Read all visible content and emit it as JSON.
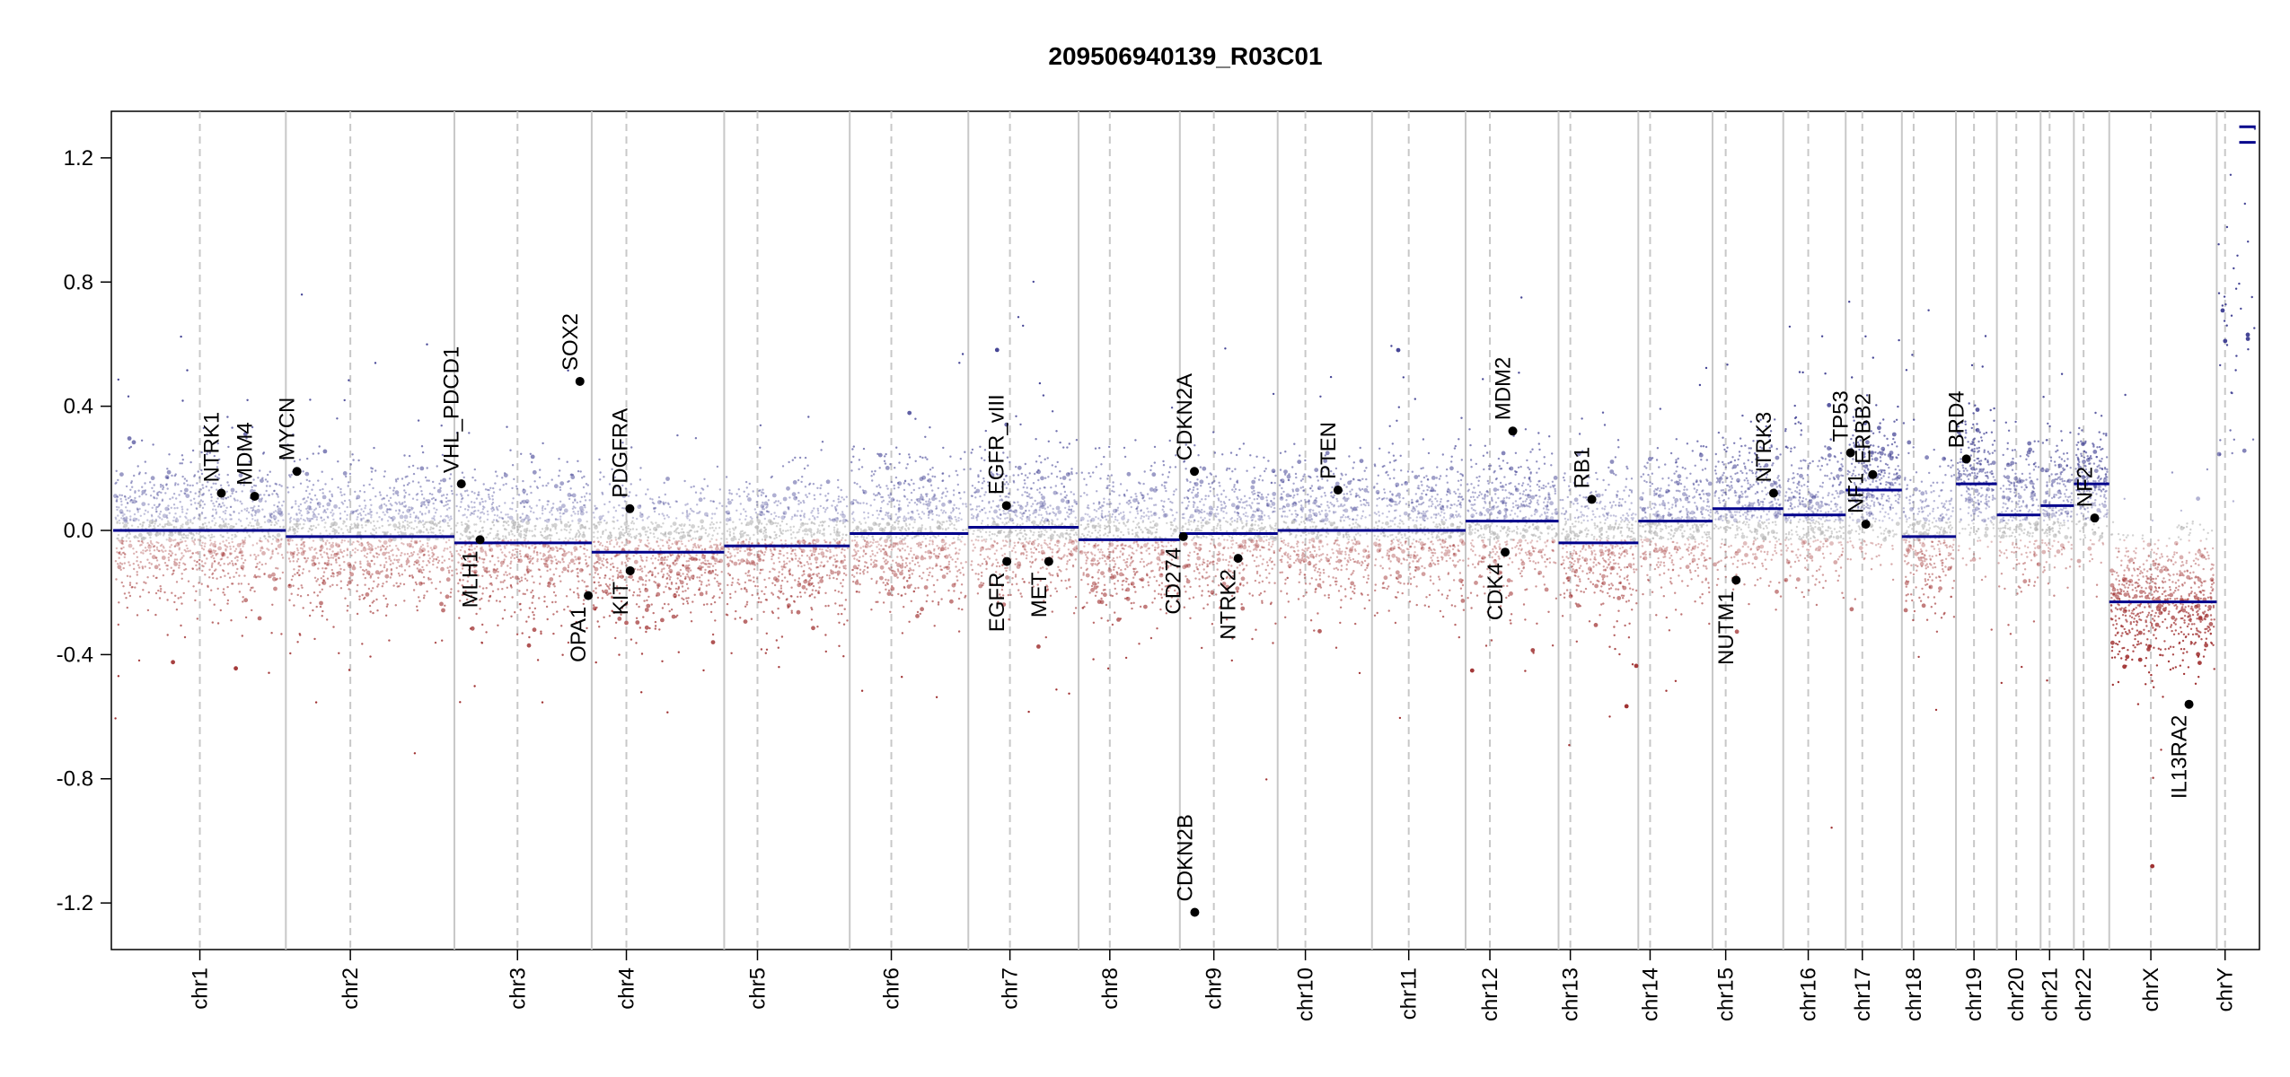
{
  "chart_data": {
    "type": "scatter",
    "title": "209506940139_R03C01",
    "xlabel": "",
    "ylabel": "",
    "ylim": [
      -1.35,
      1.35
    ],
    "y_ticks": [
      -1.2,
      -0.8,
      -0.4,
      0.0,
      0.4,
      0.8,
      1.2
    ],
    "y_tick_labels": [
      "-1.2",
      "-0.8",
      "-0.4",
      "0.0",
      "0.4",
      "0.8",
      "1.2"
    ],
    "grid": "vertical chromosome separators and dashed centromere lines",
    "colors": {
      "gain": "#4040a0",
      "loss": "#a03030",
      "neutral": "#b4b4b4",
      "segment": "#00008b",
      "gene_point": "#000000"
    },
    "chromosomes": [
      {
        "name": "chr1",
        "width": 249,
        "cen": 125,
        "segments": [
          {
            "from": 0,
            "to": 1,
            "value": 0.0
          }
        ]
      },
      {
        "name": "chr2",
        "width": 243,
        "cen": 93,
        "segments": [
          {
            "from": 0,
            "to": 1,
            "value": -0.02
          }
        ]
      },
      {
        "name": "chr3",
        "width": 198,
        "cen": 91,
        "segments": [
          {
            "from": 0,
            "to": 1,
            "value": -0.04
          }
        ]
      },
      {
        "name": "chr4",
        "width": 191,
        "cen": 50,
        "segments": [
          {
            "from": 0,
            "to": 1,
            "value": -0.07
          }
        ]
      },
      {
        "name": "chr5",
        "width": 181,
        "cen": 48,
        "segments": [
          {
            "from": 0,
            "to": 1,
            "value": -0.05
          }
        ]
      },
      {
        "name": "chr6",
        "width": 171,
        "cen": 60,
        "segments": [
          {
            "from": 0,
            "to": 1,
            "value": -0.01
          }
        ]
      },
      {
        "name": "chr7",
        "width": 159,
        "cen": 60,
        "segments": [
          {
            "from": 0,
            "to": 1,
            "value": 0.01
          }
        ]
      },
      {
        "name": "chr8",
        "width": 146,
        "cen": 45,
        "segments": [
          {
            "from": 0,
            "to": 1,
            "value": -0.03
          }
        ]
      },
      {
        "name": "chr9",
        "width": 141,
        "cen": 49,
        "segments": [
          {
            "from": 0,
            "to": 1,
            "value": -0.01
          }
        ]
      },
      {
        "name": "chr10",
        "width": 136,
        "cen": 40,
        "segments": [
          {
            "from": 0,
            "to": 1,
            "value": 0.0
          }
        ]
      },
      {
        "name": "chr11",
        "width": 135,
        "cen": 53,
        "segments": [
          {
            "from": 0,
            "to": 1,
            "value": 0.0
          }
        ]
      },
      {
        "name": "chr12",
        "width": 134,
        "cen": 35,
        "segments": [
          {
            "from": 0,
            "to": 1,
            "value": 0.03
          }
        ]
      },
      {
        "name": "chr13",
        "width": 115,
        "cen": 17,
        "segments": [
          {
            "from": 0,
            "to": 1,
            "value": -0.04
          }
        ]
      },
      {
        "name": "chr14",
        "width": 107,
        "cen": 17,
        "segments": [
          {
            "from": 0,
            "to": 1,
            "value": 0.03
          }
        ]
      },
      {
        "name": "chr15",
        "width": 102,
        "cen": 19,
        "segments": [
          {
            "from": 0,
            "to": 1,
            "value": 0.07
          }
        ]
      },
      {
        "name": "chr16",
        "width": 90,
        "cen": 36,
        "segments": [
          {
            "from": 0,
            "to": 1,
            "value": 0.05
          }
        ]
      },
      {
        "name": "chr17",
        "width": 81,
        "cen": 24,
        "segments": [
          {
            "from": 0,
            "to": 1,
            "value": 0.13
          }
        ]
      },
      {
        "name": "chr18",
        "width": 78,
        "cen": 17,
        "segments": [
          {
            "from": 0,
            "to": 1,
            "value": -0.02
          }
        ]
      },
      {
        "name": "chr19",
        "width": 59,
        "cen": 26,
        "segments": [
          {
            "from": 0,
            "to": 1,
            "value": 0.15
          }
        ]
      },
      {
        "name": "chr20",
        "width": 63,
        "cen": 28,
        "segments": [
          {
            "from": 0,
            "to": 1,
            "value": 0.05
          }
        ]
      },
      {
        "name": "chr21",
        "width": 48,
        "cen": 13,
        "segments": [
          {
            "from": 0,
            "to": 1,
            "value": 0.08
          }
        ]
      },
      {
        "name": "chr22",
        "width": 51,
        "cen": 14,
        "segments": [
          {
            "from": 0,
            "to": 1,
            "value": 0.15
          }
        ]
      },
      {
        "name": "chrX",
        "width": 155,
        "cen": 60,
        "segments": [
          {
            "from": 0,
            "to": 1,
            "value": -0.23
          }
        ]
      },
      {
        "name": "chrY",
        "width": 59,
        "cen": 12,
        "segments": [
          {
            "from": 0.0,
            "to": 0.45,
            "value": 1.3
          },
          {
            "from": 0.0,
            "to": 0.45,
            "value": 1.25
          }
        ]
      }
    ],
    "genes": [
      {
        "name": "NTRK1",
        "chr": "chr1",
        "pos": 156,
        "value": 0.12,
        "label": "above"
      },
      {
        "name": "MDM4",
        "chr": "chr1",
        "pos": 204,
        "value": 0.11,
        "label": "above"
      },
      {
        "name": "MYCN",
        "chr": "chr2",
        "pos": 16,
        "value": 0.19,
        "label": "above"
      },
      {
        "name": "VHL_PDCD1",
        "chr": "chr3",
        "pos": 10,
        "value": 0.15,
        "label": "above"
      },
      {
        "name": "MLH1",
        "chr": "chr3",
        "pos": 37,
        "value": -0.03,
        "label": "below"
      },
      {
        "name": "SOX2",
        "chr": "chr3",
        "pos": 181,
        "value": 0.48,
        "label": "above"
      },
      {
        "name": "OPA1",
        "chr": "chr3",
        "pos": 193,
        "value": -0.21,
        "label": "below"
      },
      {
        "name": "PDGFRA",
        "chr": "chr4",
        "pos": 55,
        "value": 0.07,
        "label": "above"
      },
      {
        "name": "KIT",
        "chr": "chr4",
        "pos": 55.5,
        "value": -0.13,
        "label": "below"
      },
      {
        "name": "EGFR_vIII",
        "chr": "chr7",
        "pos": 55,
        "value": 0.08,
        "label": "above"
      },
      {
        "name": "EGFR",
        "chr": "chr7",
        "pos": 55.5,
        "value": -0.1,
        "label": "below"
      },
      {
        "name": "MET",
        "chr": "chr7",
        "pos": 116,
        "value": -0.1,
        "label": "below"
      },
      {
        "name": "CDKN2A",
        "chr": "chr9",
        "pos": 21,
        "value": 0.19,
        "label": "above"
      },
      {
        "name": "CD274",
        "chr": "chr9",
        "pos": 5,
        "value": -0.02,
        "label": "below"
      },
      {
        "name": "CDKN2B",
        "chr": "chr9",
        "pos": 21.5,
        "value": -1.23,
        "label": "above"
      },
      {
        "name": "NTRK2",
        "chr": "chr9",
        "pos": 84,
        "value": -0.09,
        "label": "below"
      },
      {
        "name": "PTEN",
        "chr": "chr10",
        "pos": 87,
        "value": 0.13,
        "label": "above"
      },
      {
        "name": "MDM2",
        "chr": "chr12",
        "pos": 68,
        "value": 0.32,
        "label": "above"
      },
      {
        "name": "CDK4",
        "chr": "chr12",
        "pos": 57,
        "value": -0.07,
        "label": "below"
      },
      {
        "name": "RB1",
        "chr": "chr13",
        "pos": 48,
        "value": 0.1,
        "label": "above"
      },
      {
        "name": "NUTM1",
        "chr": "chr15",
        "pos": 34,
        "value": -0.16,
        "label": "below"
      },
      {
        "name": "NTRK3",
        "chr": "chr15",
        "pos": 88,
        "value": 0.12,
        "label": "above"
      },
      {
        "name": "TP53",
        "chr": "chr17",
        "pos": 7,
        "value": 0.25,
        "label": "above"
      },
      {
        "name": "NF1",
        "chr": "chr17",
        "pos": 29,
        "value": 0.02,
        "label": "above"
      },
      {
        "name": "ERBB2",
        "chr": "chr17",
        "pos": 39,
        "value": 0.18,
        "label": "above"
      },
      {
        "name": "BRD4",
        "chr": "chr19",
        "pos": 15,
        "value": 0.23,
        "label": "above"
      },
      {
        "name": "NF2",
        "chr": "chr22",
        "pos": 30,
        "value": 0.04,
        "label": "above"
      },
      {
        "name": "IL13RA2",
        "chr": "chrX",
        "pos": 115,
        "value": -0.56,
        "label": "below"
      }
    ]
  }
}
